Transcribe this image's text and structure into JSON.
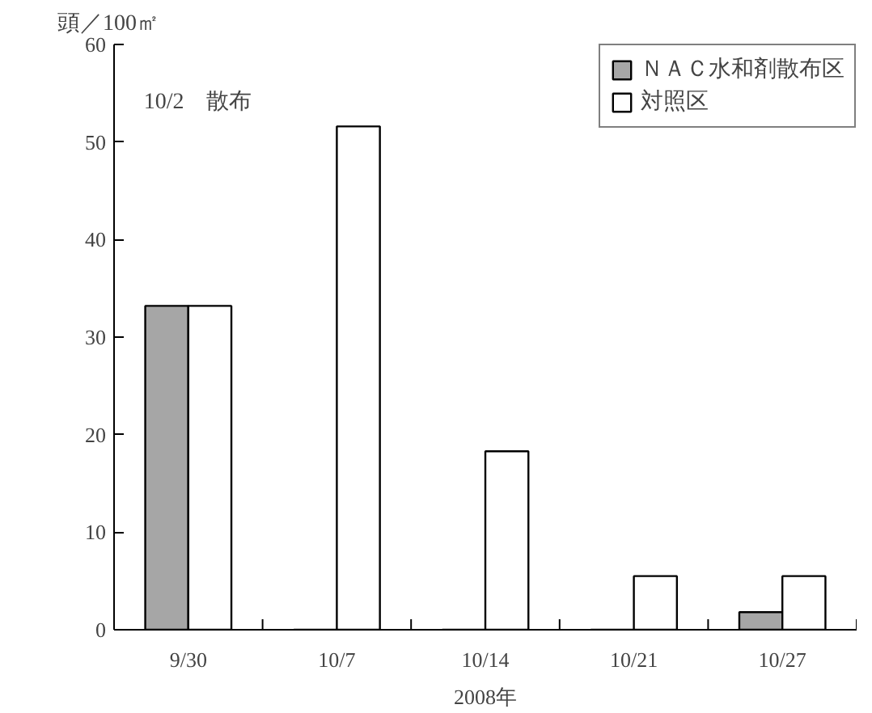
{
  "chart_data": {
    "type": "bar",
    "ylabel": "頭／100㎡",
    "xlabel": "2008年",
    "categories": [
      "9/30",
      "10/7",
      "10/14",
      "10/21",
      "10/27"
    ],
    "series": [
      {
        "name": "ＮＡＣ水和剤散布区",
        "color": "#a6a6a6",
        "values": [
          33.2,
          null,
          null,
          null,
          1.8
        ]
      },
      {
        "name": "対照区",
        "color": "#ffffff",
        "values": [
          33.2,
          51.6,
          18.3,
          5.5,
          5.5
        ]
      }
    ],
    "ylim": [
      0,
      60
    ],
    "yticks": [
      0,
      10,
      20,
      30,
      40,
      50,
      60
    ],
    "grid": false,
    "legend": "top right",
    "annotations": [
      "10/2　散布"
    ]
  }
}
